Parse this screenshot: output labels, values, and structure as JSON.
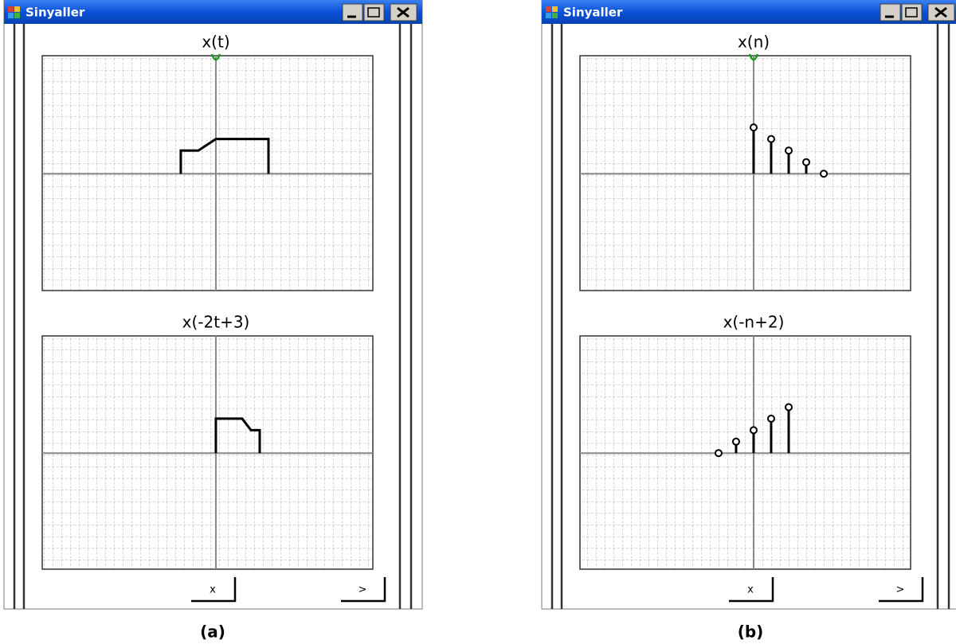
{
  "windows": [
    {
      "title": "Sinyaller",
      "plots": [
        {
          "title": "x(t)",
          "type": "line",
          "x": [
            -2,
            -2,
            -1,
            0,
            3,
            3
          ],
          "y": [
            0,
            2,
            2,
            3,
            3,
            0
          ],
          "xlim": [
            -9.9,
            8.95
          ],
          "ylim": [
            -10.1,
            10.2
          ]
        },
        {
          "title": "x(-2t+3)",
          "type": "line",
          "x": [
            0,
            0,
            1.5,
            2,
            2.5,
            2.5
          ],
          "y": [
            0,
            3,
            3,
            2,
            2,
            0
          ],
          "xlim": [
            -9.9,
            8.95
          ],
          "ylim": [
            -10.1,
            10.2
          ]
        }
      ],
      "buttons": [
        "x",
        ">"
      ]
    },
    {
      "title": "Sinyaller",
      "plots": [
        {
          "title": "x(n)",
          "type": "stem",
          "x": [
            0,
            1,
            2,
            3,
            4
          ],
          "y": [
            4,
            3,
            2,
            1,
            0
          ],
          "xlim": [
            -9.9,
            8.95
          ],
          "ylim": [
            -10.1,
            10.2
          ]
        },
        {
          "title": "x(-n+2)",
          "type": "stem",
          "x": [
            -2,
            -1,
            0,
            1,
            2
          ],
          "y": [
            0,
            1,
            2,
            3,
            4
          ],
          "xlim": [
            -9.9,
            8.95
          ],
          "ylim": [
            -10.1,
            10.2
          ]
        }
      ],
      "buttons": [
        "x",
        ">"
      ]
    }
  ],
  "captions": [
    "(a)",
    "(b)"
  ]
}
